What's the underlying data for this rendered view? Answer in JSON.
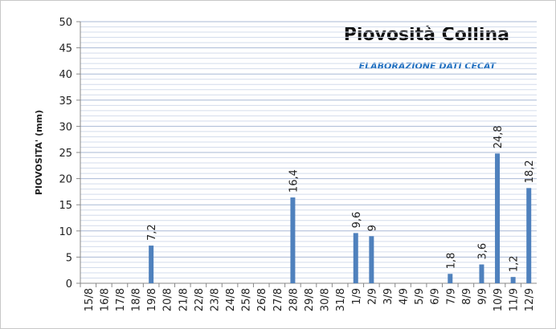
{
  "chart_data": {
    "type": "bar",
    "title": "Piovosità Collina",
    "subtitle": "ELABORAZIONE DATI CECAT",
    "y_label": "PIOVOSITA' (mm)",
    "categories": [
      "15/8",
      "16/8",
      "17/8",
      "18/8",
      "19/8",
      "20/8",
      "21/8",
      "22/8",
      "23/8",
      "24/8",
      "25/8",
      "26/8",
      "27/8",
      "28/8",
      "29/8",
      "30/8",
      "31/8",
      "1/9",
      "2/9",
      "3/9",
      "4/9",
      "5/9",
      "6/9",
      "7/9",
      "8/9",
      "9/9",
      "10/9",
      "11/9",
      "12/9"
    ],
    "values": [
      0,
      0,
      0,
      0,
      7.2,
      0,
      0,
      0,
      0,
      0,
      0,
      0,
      0,
      16.4,
      0,
      0,
      0,
      9.6,
      9,
      0,
      0,
      0,
      0,
      1.8,
      0,
      3.6,
      24.8,
      1.2,
      18.2
    ],
    "value_labels": [
      null,
      null,
      null,
      null,
      "7,2",
      null,
      null,
      null,
      null,
      null,
      null,
      null,
      null,
      "16,4",
      null,
      null,
      null,
      "9,6",
      "9",
      null,
      null,
      null,
      null,
      "1,8",
      null,
      "3,6",
      "24,8",
      "1,2",
      "18,2"
    ],
    "color": "#4f81bd",
    "ylim": [
      0,
      50
    ],
    "yticks": [
      0,
      5,
      10,
      15,
      20,
      25,
      30,
      35,
      40,
      45,
      50
    ],
    "grid": true
  }
}
